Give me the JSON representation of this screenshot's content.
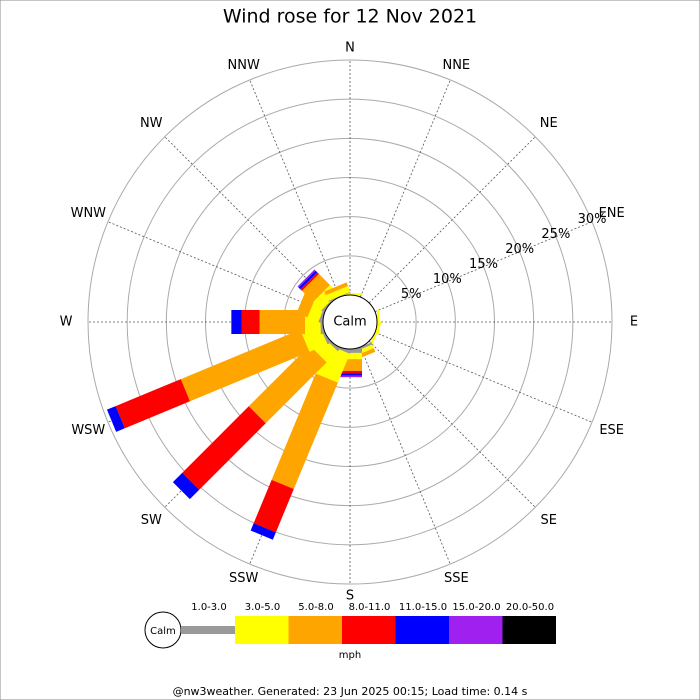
{
  "chart_data": {
    "type": "windrose",
    "title": "Wind rose for 12 Nov 2021",
    "calm_label": "Calm",
    "directions": [
      "N",
      "NNE",
      "NE",
      "ENE",
      "E",
      "ESE",
      "SE",
      "SSE",
      "S",
      "SSW",
      "SW",
      "WSW",
      "W",
      "WNW",
      "NW",
      "NNW"
    ],
    "rlim": [
      0,
      30
    ],
    "rticks": [
      {
        "value": 5,
        "label": "5%"
      },
      {
        "value": 10,
        "label": "10%"
      },
      {
        "value": 15,
        "label": "15%"
      },
      {
        "value": 20,
        "label": "20%"
      },
      {
        "value": 25,
        "label": "25%"
      },
      {
        "value": 30,
        "label": "30%"
      }
    ],
    "series": [
      {
        "name": "1.0-3.0",
        "color": "#999999",
        "values": [
          0,
          0,
          0,
          0,
          0,
          0,
          0,
          0.3,
          0.5,
          0.3,
          0.3,
          0.3,
          0.3,
          0.3,
          0.2,
          0.1
        ]
      },
      {
        "name": "3.0-5.0",
        "color": "#ffff00",
        "values": [
          0.2,
          0,
          0,
          0,
          0.3,
          0.3,
          0,
          0.5,
          0.8,
          4,
          2,
          2.5,
          2,
          1.5,
          1.5,
          0.8
        ]
      },
      {
        "name": "5.0-8.0",
        "color": "#ffa500",
        "values": [
          0,
          0,
          0,
          0,
          0,
          0,
          0,
          0.5,
          1.5,
          14.7,
          11,
          16.5,
          5.8,
          1.5,
          2,
          0.5
        ]
      },
      {
        "name": "8.0-11.0",
        "color": "#ff0000",
        "values": [
          0,
          0,
          0,
          0,
          0,
          0,
          0,
          0,
          0.3,
          6,
          12,
          9,
          2.3,
          0,
          0.3,
          0
        ]
      },
      {
        "name": "11.0-15.0",
        "color": "#0000ff",
        "values": [
          0,
          0,
          0,
          0,
          0,
          0,
          0,
          0,
          0.3,
          1,
          1.7,
          1.2,
          1.3,
          0,
          0.3,
          0
        ]
      },
      {
        "name": "15.0-20.0",
        "color": "#a020f0",
        "values": [
          0,
          0,
          0,
          0,
          0,
          0,
          0,
          0,
          0.2,
          0,
          0,
          0,
          0,
          0,
          0.2,
          0
        ]
      },
      {
        "name": "20.0-50.0",
        "color": "#000000",
        "values": [
          0,
          0,
          0,
          0,
          0,
          0,
          0,
          0,
          0,
          0,
          0,
          0,
          0,
          0,
          0,
          0
        ]
      }
    ],
    "unit_label": "mph",
    "footer": "@nw3weather. Generated: 23 Jun 2025 00:15; Load time: 0.14 s"
  }
}
